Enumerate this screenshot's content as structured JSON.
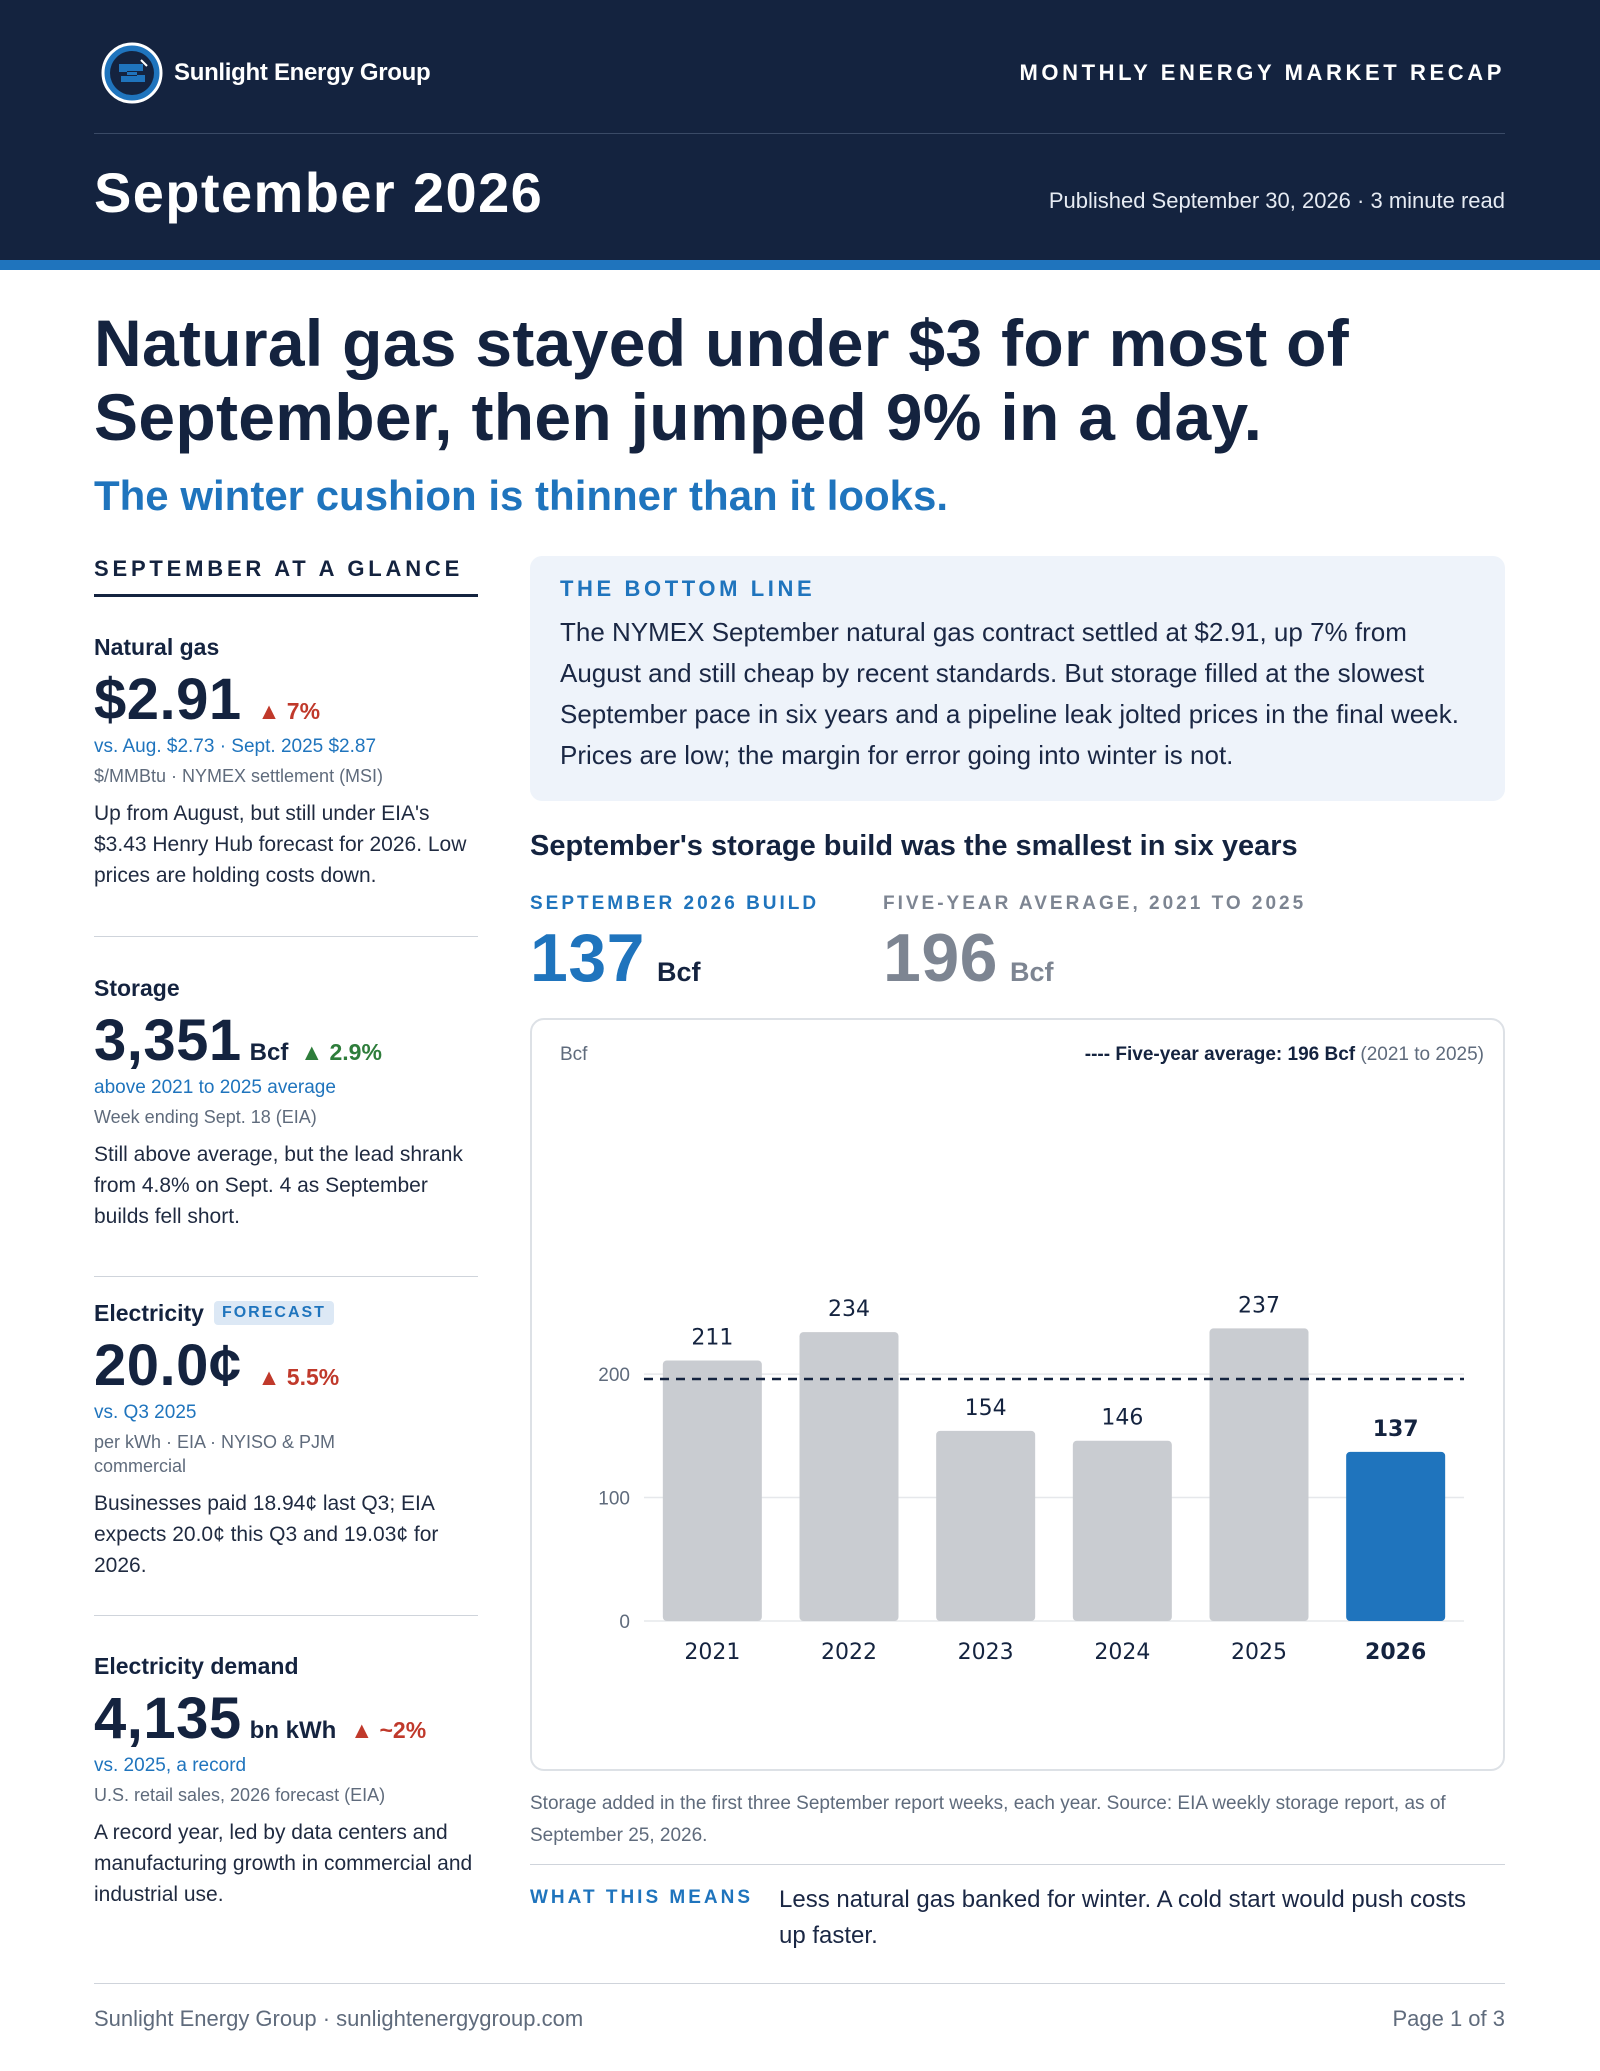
{
  "header": {
    "brand_name": "Sunlight Energy Group",
    "kicker": "MONTHLY ENERGY MARKET RECAP",
    "issue_title": "September 2026",
    "published": "Published September 30, 2026 · 3 minute read",
    "colors": {
      "navy": "#14233f",
      "accent": "#1f74bd"
    },
    "logo_icon": "brand-logo-icon"
  },
  "headline": {
    "title": "Natural gas stayed under $3 for most of September, then jumped 9% in a day.",
    "subtitle": "The winter cushion is thinner than it looks."
  },
  "glance": {
    "title": "SEPTEMBER AT A GLANCE",
    "metrics": [
      {
        "label": "Natural gas",
        "value": "$2.91",
        "unit": "",
        "change": "▲ 7%",
        "change_color": "#c0392b",
        "compare": "vs. Aug. $2.73 · Sept. 2025 $2.87",
        "source": "$/MMBtu · NYMEX settlement (MSI)",
        "note": "Up from August, but still under EIA's $3.43 Henry Hub forecast for 2026. Low prices are holding costs down."
      },
      {
        "label": "Storage",
        "value": "3,351",
        "unit": "Bcf",
        "change": "▲ 2.9%",
        "change_color": "#2e7d3b",
        "compare": "above 2021 to 2025 average",
        "source": "Week ending Sept. 18 (EIA)",
        "note": "Still above average, but the lead shrank from 4.8% on Sept. 4 as September builds fell short."
      },
      {
        "label": "Electricity",
        "badge": "FORECAST",
        "value": "20.0¢",
        "unit": "",
        "change": "▲ 5.5%",
        "change_color": "#c0392b",
        "compare": "vs. Q3 2025",
        "source": "per kWh · EIA · NYISO & PJM commercial",
        "note": "Businesses paid 18.94¢ last Q3; EIA expects 20.0¢ this Q3 and 19.03¢ for 2026."
      },
      {
        "label": "Electricity demand",
        "value": "4,135",
        "unit": "bn kWh",
        "change": "▲ ~2%",
        "change_color": "#c0392b",
        "compare": "vs. 2025, a record",
        "source": "U.S. retail sales, 2026 forecast (EIA)",
        "note": "A record year, led by data centers and manufacturing growth in commercial and industrial use."
      }
    ]
  },
  "bottom_line": {
    "title": "THE BOTTOM LINE",
    "text": "The NYMEX September natural gas contract settled at $2.91, up 7% from August and still cheap by recent standards. But storage filled at the slowest September pace in six years and a pipeline leak jolted prices in the final week. Prices are low; the margin for error going into winter is not."
  },
  "chart_section": {
    "title": "September's storage build was the smallest in six years",
    "stat_current": {
      "label": "SEPTEMBER 2026 BUILD",
      "value": "137",
      "unit": "Bcf"
    },
    "stat_average": {
      "label": "FIVE-YEAR AVERAGE, 2021 TO 2025",
      "value": "196",
      "unit": "Bcf"
    },
    "caption": "Storage added in the first three September report weeks, each year. Source: EIA weekly storage report, as of September 25, 2026.",
    "means_label": "WHAT THIS MEANS",
    "means_text": "Less natural gas banked for winter. A cold start would push costs up faster."
  },
  "chart_data": {
    "type": "bar",
    "title": "",
    "xlabel": "",
    "ylabel": "Bcf",
    "categories": [
      "2021",
      "2022",
      "2023",
      "2024",
      "2025",
      "2026"
    ],
    "values": [
      211,
      234,
      154,
      146,
      237,
      137
    ],
    "highlight_category": "2026",
    "ylim": [
      0,
      260
    ],
    "yticks": [
      0,
      100,
      200
    ],
    "grid": true,
    "reference_line": {
      "value": 196,
      "label_bold": "Five-year average: 196 Bcf",
      "label_rest": " (2021 to 2025)",
      "legend_dash": "----"
    },
    "colors": {
      "bar": "#c9ccd1",
      "highlight": "#1f74bd",
      "reference": "#14233f"
    }
  },
  "footer": {
    "left": "Sunlight Energy Group · sunlightenergygroup.com",
    "right": "Page 1 of 3"
  }
}
